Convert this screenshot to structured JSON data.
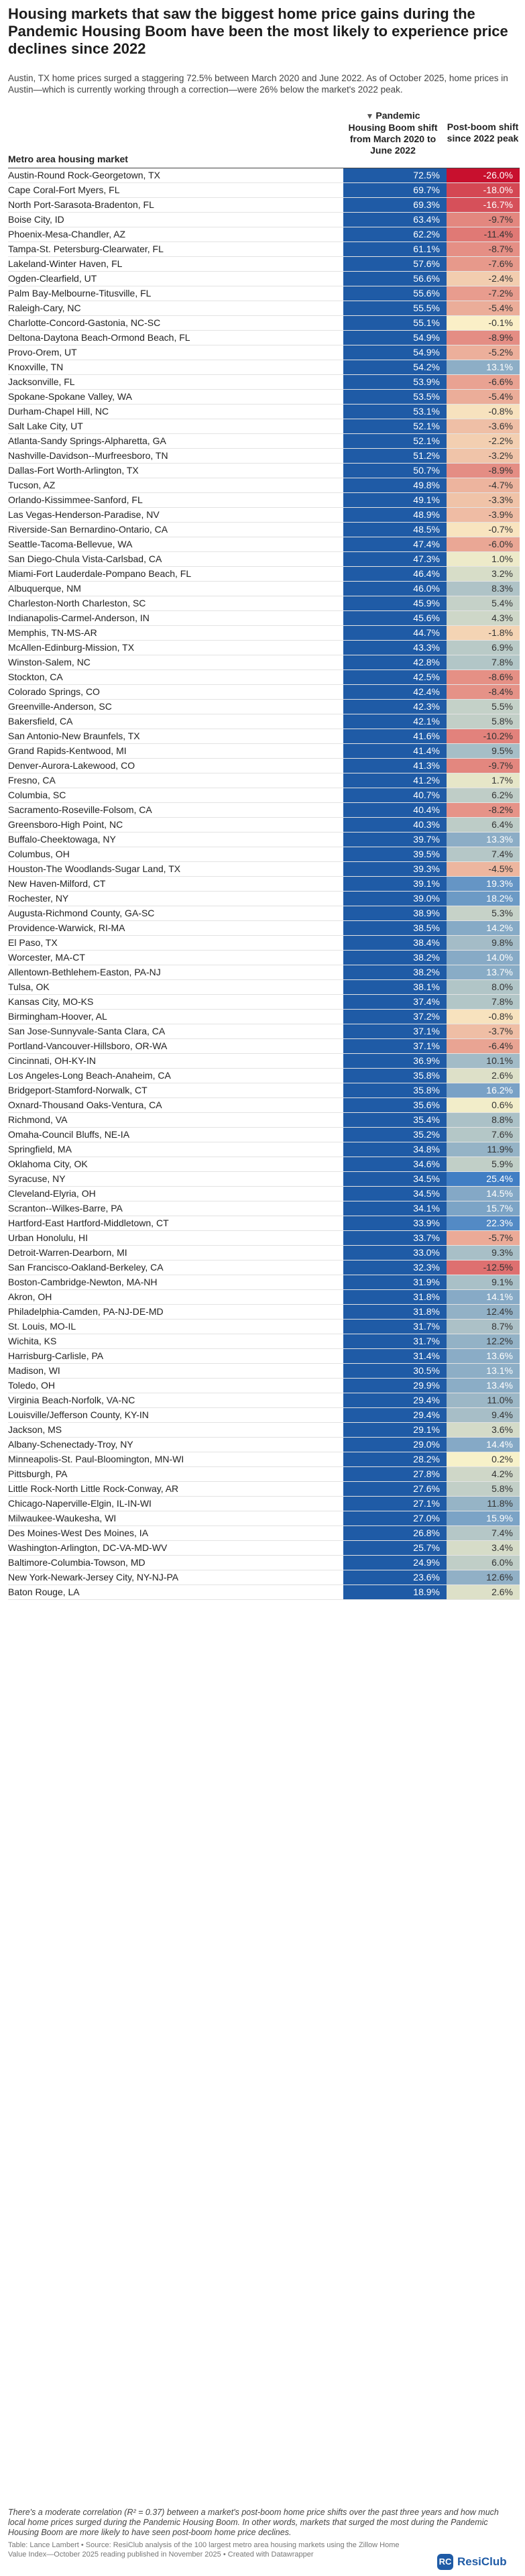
{
  "title": "Housing markets that saw the biggest home price gains during the Pandemic Housing Boom have been the most likely to experience price declines since 2022",
  "subtitle": "Austin, TX home prices surged a staggering 72.5% between March 2020 and June 2022. As of October 2025, home prices in Austin—which is currently working through a correction—were 26% below the market's 2022 peak.",
  "columns": {
    "market": "Metro area housing market",
    "boom": "Pandemic Housing Boom shift from March 2020 to June 2022",
    "post": "Post-boom shift since 2022 peak",
    "sort_icon": "▼"
  },
  "colors": {
    "boom_bar": "#1f5ba6",
    "neg_strong": "#c8102e",
    "neutral": "#fbf3c9",
    "pos_strong": "#3d7cc4"
  },
  "chart_data": {
    "type": "table",
    "title": "Housing markets that saw the biggest home price gains during the Pandemic Housing Boom have been the most likely to experience price declines since 2022",
    "columns": [
      "Metro area housing market",
      "Pandemic Housing Boom shift from March 2020 to June 2022",
      "Post-boom shift since 2022 peak"
    ],
    "rows": [
      {
        "market": "Austin-Round Rock-Georgetown, TX",
        "boom": "72.5%",
        "post": "-26.0%",
        "post_value": -26.0
      },
      {
        "market": "Cape Coral-Fort Myers, FL",
        "boom": "69.7%",
        "post": "-18.0%",
        "post_value": -18.0
      },
      {
        "market": "North Port-Sarasota-Bradenton, FL",
        "boom": "69.3%",
        "post": "-16.7%",
        "post_value": -16.7
      },
      {
        "market": "Boise City, ID",
        "boom": "63.4%",
        "post": "-9.7%",
        "post_value": -9.7
      },
      {
        "market": "Phoenix-Mesa-Chandler, AZ",
        "boom": "62.2%",
        "post": "-11.4%",
        "post_value": -11.4
      },
      {
        "market": "Tampa-St. Petersburg-Clearwater, FL",
        "boom": "61.1%",
        "post": "-8.7%",
        "post_value": -8.7
      },
      {
        "market": "Lakeland-Winter Haven, FL",
        "boom": "57.6%",
        "post": "-7.6%",
        "post_value": -7.6
      },
      {
        "market": "Ogden-Clearfield, UT",
        "boom": "56.6%",
        "post": "-2.4%",
        "post_value": -2.4
      },
      {
        "market": "Palm Bay-Melbourne-Titusville, FL",
        "boom": "55.6%",
        "post": "-7.2%",
        "post_value": -7.2
      },
      {
        "market": "Raleigh-Cary, NC",
        "boom": "55.5%",
        "post": "-5.4%",
        "post_value": -5.4
      },
      {
        "market": "Charlotte-Concord-Gastonia, NC-SC",
        "boom": "55.1%",
        "post": "-0.1%",
        "post_value": -0.1
      },
      {
        "market": "Deltona-Daytona Beach-Ormond Beach, FL",
        "boom": "54.9%",
        "post": "-8.9%",
        "post_value": -8.9
      },
      {
        "market": "Provo-Orem, UT",
        "boom": "54.9%",
        "post": "-5.2%",
        "post_value": -5.2
      },
      {
        "market": "Knoxville, TN",
        "boom": "54.2%",
        "post": "13.1%",
        "post_value": 13.1
      },
      {
        "market": "Jacksonville, FL",
        "boom": "53.9%",
        "post": "-6.6%",
        "post_value": -6.6
      },
      {
        "market": "Spokane-Spokane Valley, WA",
        "boom": "53.5%",
        "post": "-5.4%",
        "post_value": -5.4
      },
      {
        "market": "Durham-Chapel Hill, NC",
        "boom": "53.1%",
        "post": "-0.8%",
        "post_value": -0.8
      },
      {
        "market": "Salt Lake City, UT",
        "boom": "52.1%",
        "post": "-3.6%",
        "post_value": -3.6
      },
      {
        "market": "Atlanta-Sandy Springs-Alpharetta, GA",
        "boom": "52.1%",
        "post": "-2.2%",
        "post_value": -2.2
      },
      {
        "market": "Nashville-Davidson--Murfreesboro, TN",
        "boom": "51.2%",
        "post": "-3.2%",
        "post_value": -3.2
      },
      {
        "market": "Dallas-Fort Worth-Arlington, TX",
        "boom": "50.7%",
        "post": "-8.9%",
        "post_value": -8.9
      },
      {
        "market": "Tucson, AZ",
        "boom": "49.8%",
        "post": "-4.7%",
        "post_value": -4.7
      },
      {
        "market": "Orlando-Kissimmee-Sanford, FL",
        "boom": "49.1%",
        "post": "-3.3%",
        "post_value": -3.3
      },
      {
        "market": "Las Vegas-Henderson-Paradise, NV",
        "boom": "48.9%",
        "post": "-3.9%",
        "post_value": -3.9
      },
      {
        "market": "Riverside-San Bernardino-Ontario, CA",
        "boom": "48.5%",
        "post": "-0.7%",
        "post_value": -0.7
      },
      {
        "market": "Seattle-Tacoma-Bellevue, WA",
        "boom": "47.4%",
        "post": "-6.0%",
        "post_value": -6.0
      },
      {
        "market": "San Diego-Chula Vista-Carlsbad, CA",
        "boom": "47.3%",
        "post": "1.0%",
        "post_value": 1.0
      },
      {
        "market": "Miami-Fort Lauderdale-Pompano Beach, FL",
        "boom": "46.4%",
        "post": "3.2%",
        "post_value": 3.2
      },
      {
        "market": "Albuquerque, NM",
        "boom": "46.0%",
        "post": "8.3%",
        "post_value": 8.3
      },
      {
        "market": "Charleston-North Charleston, SC",
        "boom": "45.9%",
        "post": "5.4%",
        "post_value": 5.4
      },
      {
        "market": "Indianapolis-Carmel-Anderson, IN",
        "boom": "45.6%",
        "post": "4.3%",
        "post_value": 4.3
      },
      {
        "market": "Memphis, TN-MS-AR",
        "boom": "44.7%",
        "post": "-1.8%",
        "post_value": -1.8
      },
      {
        "market": "McAllen-Edinburg-Mission, TX",
        "boom": "43.3%",
        "post": "6.9%",
        "post_value": 6.9
      },
      {
        "market": "Winston-Salem, NC",
        "boom": "42.8%",
        "post": "7.8%",
        "post_value": 7.8
      },
      {
        "market": "Stockton, CA",
        "boom": "42.5%",
        "post": "-8.6%",
        "post_value": -8.6
      },
      {
        "market": "Colorado Springs, CO",
        "boom": "42.4%",
        "post": "-8.4%",
        "post_value": -8.4
      },
      {
        "market": "Greenville-Anderson, SC",
        "boom": "42.3%",
        "post": "5.5%",
        "post_value": 5.5
      },
      {
        "market": "Bakersfield, CA",
        "boom": "42.1%",
        "post": "5.8%",
        "post_value": 5.8
      },
      {
        "market": "San Antonio-New Braunfels, TX",
        "boom": "41.6%",
        "post": "-10.2%",
        "post_value": -10.2
      },
      {
        "market": "Grand Rapids-Kentwood, MI",
        "boom": "41.4%",
        "post": "9.5%",
        "post_value": 9.5
      },
      {
        "market": "Denver-Aurora-Lakewood, CO",
        "boom": "41.3%",
        "post": "-9.7%",
        "post_value": -9.7
      },
      {
        "market": "Fresno, CA",
        "boom": "41.2%",
        "post": "1.7%",
        "post_value": 1.7
      },
      {
        "market": "Columbia, SC",
        "boom": "40.7%",
        "post": "6.2%",
        "post_value": 6.2
      },
      {
        "market": "Sacramento-Roseville-Folsom, CA",
        "boom": "40.4%",
        "post": "-8.2%",
        "post_value": -8.2
      },
      {
        "market": "Greensboro-High Point, NC",
        "boom": "40.3%",
        "post": "6.4%",
        "post_value": 6.4
      },
      {
        "market": "Buffalo-Cheektowaga, NY",
        "boom": "39.7%",
        "post": "13.3%",
        "post_value": 13.3
      },
      {
        "market": "Columbus, OH",
        "boom": "39.5%",
        "post": "7.4%",
        "post_value": 7.4
      },
      {
        "market": "Houston-The Woodlands-Sugar Land, TX",
        "boom": "39.3%",
        "post": "-4.5%",
        "post_value": -4.5
      },
      {
        "market": "New Haven-Milford, CT",
        "boom": "39.1%",
        "post": "19.3%",
        "post_value": 19.3
      },
      {
        "market": "Rochester, NY",
        "boom": "39.0%",
        "post": "18.2%",
        "post_value": 18.2
      },
      {
        "market": "Augusta-Richmond County, GA-SC",
        "boom": "38.9%",
        "post": "5.3%",
        "post_value": 5.3
      },
      {
        "market": "Providence-Warwick, RI-MA",
        "boom": "38.5%",
        "post": "14.2%",
        "post_value": 14.2
      },
      {
        "market": "El Paso, TX",
        "boom": "38.4%",
        "post": "9.8%",
        "post_value": 9.8
      },
      {
        "market": "Worcester, MA-CT",
        "boom": "38.2%",
        "post": "14.0%",
        "post_value": 14.0
      },
      {
        "market": "Allentown-Bethlehem-Easton, PA-NJ",
        "boom": "38.2%",
        "post": "13.7%",
        "post_value": 13.7
      },
      {
        "market": "Tulsa, OK",
        "boom": "38.1%",
        "post": "8.0%",
        "post_value": 8.0
      },
      {
        "market": "Kansas City, MO-KS",
        "boom": "37.4%",
        "post": "7.8%",
        "post_value": 7.8
      },
      {
        "market": "Birmingham-Hoover, AL",
        "boom": "37.2%",
        "post": "-0.8%",
        "post_value": -0.8
      },
      {
        "market": "San Jose-Sunnyvale-Santa Clara, CA",
        "boom": "37.1%",
        "post": "-3.7%",
        "post_value": -3.7
      },
      {
        "market": "Portland-Vancouver-Hillsboro, OR-WA",
        "boom": "37.1%",
        "post": "-6.4%",
        "post_value": -6.4
      },
      {
        "market": "Cincinnati, OH-KY-IN",
        "boom": "36.9%",
        "post": "10.1%",
        "post_value": 10.1
      },
      {
        "market": "Los Angeles-Long Beach-Anaheim, CA",
        "boom": "35.8%",
        "post": "2.6%",
        "post_value": 2.6
      },
      {
        "market": "Bridgeport-Stamford-Norwalk, CT",
        "boom": "35.8%",
        "post": "16.2%",
        "post_value": 16.2
      },
      {
        "market": "Oxnard-Thousand Oaks-Ventura, CA",
        "boom": "35.6%",
        "post": "0.6%",
        "post_value": 0.6
      },
      {
        "market": "Richmond, VA",
        "boom": "35.4%",
        "post": "8.8%",
        "post_value": 8.8
      },
      {
        "market": "Omaha-Council Bluffs, NE-IA",
        "boom": "35.2%",
        "post": "7.6%",
        "post_value": 7.6
      },
      {
        "market": "Springfield, MA",
        "boom": "34.8%",
        "post": "11.9%",
        "post_value": 11.9
      },
      {
        "market": "Oklahoma City, OK",
        "boom": "34.6%",
        "post": "5.9%",
        "post_value": 5.9
      },
      {
        "market": "Syracuse, NY",
        "boom": "34.5%",
        "post": "25.4%",
        "post_value": 25.4
      },
      {
        "market": "Cleveland-Elyria, OH",
        "boom": "34.5%",
        "post": "14.5%",
        "post_value": 14.5
      },
      {
        "market": "Scranton--Wilkes-Barre, PA",
        "boom": "34.1%",
        "post": "15.7%",
        "post_value": 15.7
      },
      {
        "market": "Hartford-East Hartford-Middletown, CT",
        "boom": "33.9%",
        "post": "22.3%",
        "post_value": 22.3
      },
      {
        "market": "Urban Honolulu, HI",
        "boom": "33.7%",
        "post": "-5.7%",
        "post_value": -5.7
      },
      {
        "market": "Detroit-Warren-Dearborn, MI",
        "boom": "33.0%",
        "post": "9.3%",
        "post_value": 9.3
      },
      {
        "market": "San Francisco-Oakland-Berkeley, CA",
        "boom": "32.3%",
        "post": "-12.5%",
        "post_value": -12.5
      },
      {
        "market": "Boston-Cambridge-Newton, MA-NH",
        "boom": "31.9%",
        "post": "9.1%",
        "post_value": 9.1
      },
      {
        "market": "Akron, OH",
        "boom": "31.8%",
        "post": "14.1%",
        "post_value": 14.1
      },
      {
        "market": "Philadelphia-Camden, PA-NJ-DE-MD",
        "boom": "31.8%",
        "post": "12.4%",
        "post_value": 12.4
      },
      {
        "market": "St. Louis, MO-IL",
        "boom": "31.7%",
        "post": "8.7%",
        "post_value": 8.7
      },
      {
        "market": "Wichita, KS",
        "boom": "31.7%",
        "post": "12.2%",
        "post_value": 12.2
      },
      {
        "market": "Harrisburg-Carlisle, PA",
        "boom": "31.4%",
        "post": "13.6%",
        "post_value": 13.6
      },
      {
        "market": "Madison, WI",
        "boom": "30.5%",
        "post": "13.1%",
        "post_value": 13.1
      },
      {
        "market": "Toledo, OH",
        "boom": "29.9%",
        "post": "13.4%",
        "post_value": 13.4
      },
      {
        "market": "Virginia Beach-Norfolk, VA-NC",
        "boom": "29.4%",
        "post": "11.0%",
        "post_value": 11.0
      },
      {
        "market": "Louisville/Jefferson County, KY-IN",
        "boom": "29.4%",
        "post": "9.4%",
        "post_value": 9.4
      },
      {
        "market": "Jackson, MS",
        "boom": "29.1%",
        "post": "3.6%",
        "post_value": 3.6
      },
      {
        "market": "Albany-Schenectady-Troy, NY",
        "boom": "29.0%",
        "post": "14.4%",
        "post_value": 14.4
      },
      {
        "market": "Minneapolis-St. Paul-Bloomington, MN-WI",
        "boom": "28.2%",
        "post": "0.2%",
        "post_value": 0.2
      },
      {
        "market": "Pittsburgh, PA",
        "boom": "27.8%",
        "post": "4.2%",
        "post_value": 4.2
      },
      {
        "market": "Little Rock-North Little Rock-Conway, AR",
        "boom": "27.6%",
        "post": "5.8%",
        "post_value": 5.8
      },
      {
        "market": "Chicago-Naperville-Elgin, IL-IN-WI",
        "boom": "27.1%",
        "post": "11.8%",
        "post_value": 11.8
      },
      {
        "market": "Milwaukee-Waukesha, WI",
        "boom": "27.0%",
        "post": "15.9%",
        "post_value": 15.9
      },
      {
        "market": "Des Moines-West Des Moines, IA",
        "boom": "26.8%",
        "post": "7.4%",
        "post_value": 7.4
      },
      {
        "market": "Washington-Arlington, DC-VA-MD-WV",
        "boom": "25.7%",
        "post": "3.4%",
        "post_value": 3.4
      },
      {
        "market": "Baltimore-Columbia-Towson, MD",
        "boom": "24.9%",
        "post": "6.0%",
        "post_value": 6.0
      },
      {
        "market": "New York-Newark-Jersey City, NY-NJ-PA",
        "boom": "23.6%",
        "post": "12.6%",
        "post_value": 12.6
      },
      {
        "market": "Baton Rouge, LA",
        "boom": "18.9%",
        "post": "2.6%",
        "post_value": 2.6
      }
    ]
  },
  "notes": "There's a moderate correlation (R² = 0.37) between a market's post-boom home price shifts over the past three years and how much local home prices surged during the Pandemic Housing Boom. In other words, markets that surged the most during the Pandemic Housing Boom are more likely to have seen post-boom home price declines.",
  "credit": "Table: Lance Lambert • Source: ResiClub analysis of the 100 largest metro area housing markets using the Zillow Home Value Index—October 2025 reading published in November 2025 • Created with Datawrapper",
  "logo": {
    "mark": "RC",
    "text": "ResiClub"
  }
}
